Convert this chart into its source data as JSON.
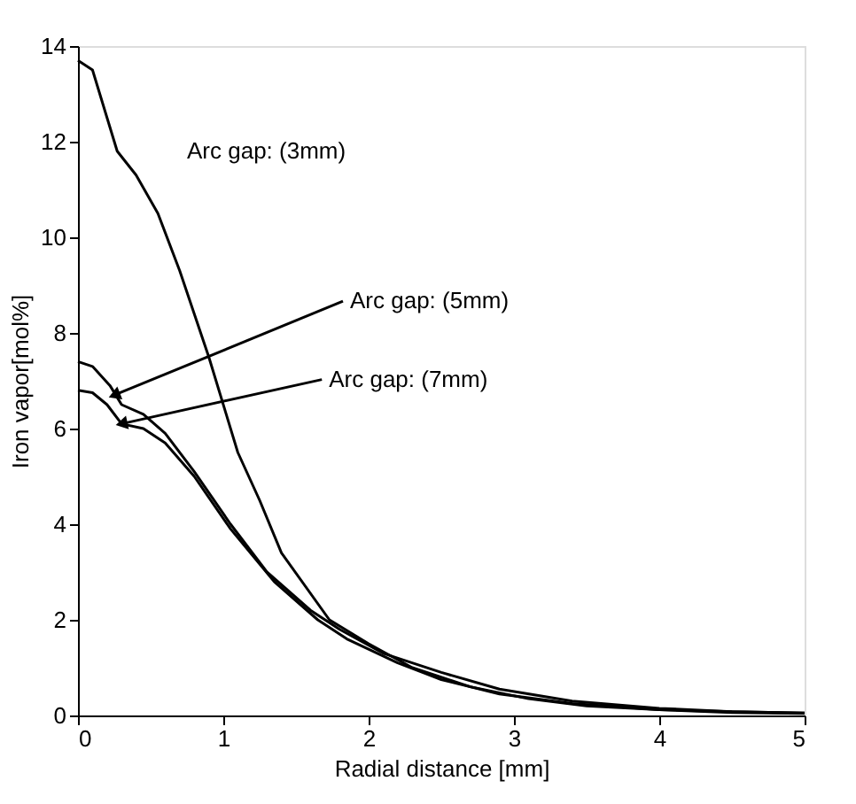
{
  "chart_data": {
    "type": "line",
    "xlabel": "Radial distance [mm]",
    "ylabel": "Iron vapor[mol%]",
    "xlim": [
      0,
      5
    ],
    "xticks": [
      0,
      1,
      2,
      3,
      4,
      5
    ],
    "ylim": [
      0,
      14
    ],
    "yticks": [
      0,
      2,
      4,
      6,
      8,
      10,
      12,
      14
    ],
    "grid": false,
    "legend": false,
    "marker": "none",
    "line_style": "solid",
    "series": [
      {
        "color": "#000000",
        "x": [
          0,
          0.1,
          0.2,
          0.27,
          0.4,
          0.55,
          0.7,
          0.9,
          1.1,
          1.25,
          1.4,
          1.73,
          2.0,
          2.3,
          2.7,
          3.1,
          3.5,
          4.0,
          4.5,
          5.0
        ],
        "values": [
          13.7,
          13.5,
          12.5,
          11.8,
          11.3,
          10.5,
          9.3,
          7.5,
          5.5,
          4.5,
          3.4,
          2.0,
          1.5,
          1.0,
          0.6,
          0.35,
          0.2,
          0.12,
          0.08,
          0.05
        ]
      },
      {
        "color": "#000000",
        "x": [
          0,
          0.1,
          0.22,
          0.3,
          0.45,
          0.6,
          0.8,
          1.05,
          1.3,
          1.6,
          1.8,
          2.1,
          2.5,
          2.9,
          3.4,
          4.0,
          4.5,
          5.0
        ],
        "values": [
          7.4,
          7.3,
          6.9,
          6.5,
          6.3,
          5.9,
          5.1,
          4.0,
          3.0,
          2.2,
          1.8,
          1.3,
          0.9,
          0.55,
          0.3,
          0.15,
          0.08,
          0.05
        ]
      },
      {
        "color": "#000000",
        "x": [
          0,
          0.1,
          0.2,
          0.3,
          0.45,
          0.6,
          0.8,
          1.05,
          1.35,
          1.65,
          1.85,
          2.2,
          2.5,
          2.9,
          3.4,
          4.0,
          4.5,
          5.0
        ],
        "values": [
          6.8,
          6.75,
          6.5,
          6.1,
          6.0,
          5.7,
          5.0,
          3.9,
          2.8,
          2.0,
          1.6,
          1.1,
          0.75,
          0.45,
          0.25,
          0.12,
          0.06,
          0.04
        ]
      }
    ],
    "annotations": [
      "Arc gap: (3mm)",
      {
        "text": "Arc gap: (5mm)",
        "x": 0.25,
        "y": 6.7
      },
      {
        "text": "Arc gap: (7mm)",
        "x": 0.3,
        "y": 6.1
      }
    ]
  }
}
